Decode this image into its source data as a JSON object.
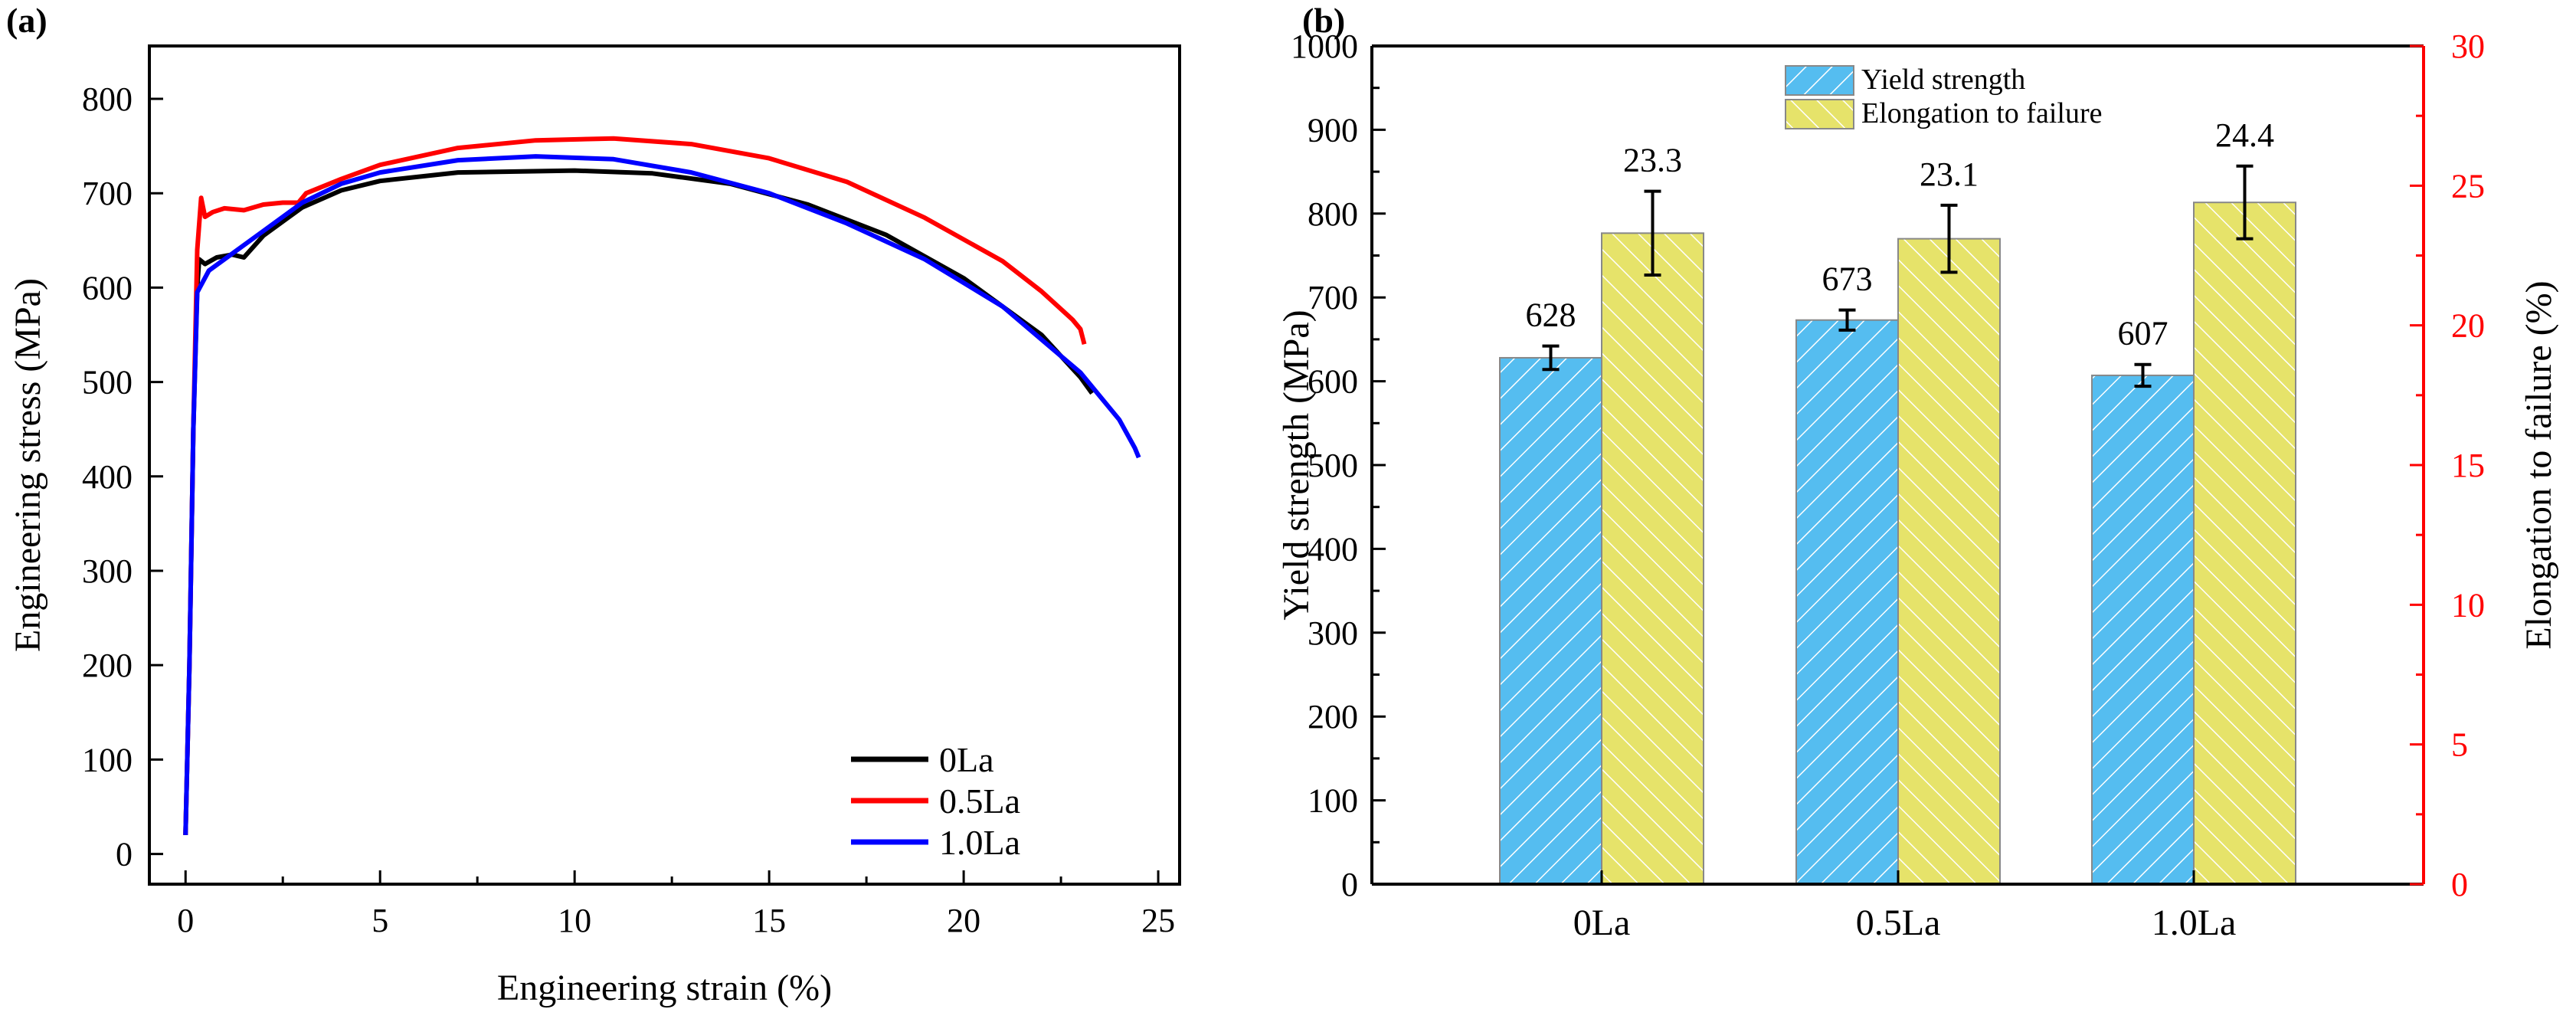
{
  "chart_data": [
    {
      "type": "line",
      "panel_label": "(a)",
      "xlabel": "Engineering strain (%)",
      "ylabel": "Engineering stress (MPa)",
      "xlim": [
        -0.93,
        25.55
      ],
      "ylim": [
        -32,
        856
      ],
      "xticks": [
        0,
        5,
        10,
        15,
        20,
        25
      ],
      "yticks": [
        0,
        100,
        200,
        300,
        400,
        500,
        600,
        700,
        800
      ],
      "grid": false,
      "legend_position": "bottom-right",
      "series": [
        {
          "name": "0La",
          "color": "#000000",
          "x": [
            0,
            0.1,
            0.2,
            0.3,
            0.35,
            0.5,
            0.8,
            1.2,
            1.5,
            2,
            3,
            4,
            5,
            7,
            10,
            12,
            14,
            16,
            18,
            20,
            22,
            23,
            23.3
          ],
          "y": [
            20,
            200,
            450,
            600,
            630,
            625,
            632,
            635,
            632,
            655,
            685,
            703,
            713,
            722,
            724,
            721,
            710,
            688,
            656,
            610,
            550,
            505,
            488
          ]
        },
        {
          "name": "0.5La",
          "color": "#ff0000",
          "x": [
            0,
            0.1,
            0.2,
            0.3,
            0.4,
            0.5,
            0.7,
            1,
            1.5,
            2,
            2.5,
            2.9,
            3.1,
            4,
            5,
            7,
            9,
            11,
            13,
            15,
            17,
            19,
            21,
            22,
            22.8,
            23,
            23.1
          ],
          "y": [
            20,
            200,
            450,
            640,
            695,
            675,
            680,
            684,
            682,
            688,
            690,
            690,
            700,
            715,
            730,
            748,
            756,
            758,
            752,
            737,
            712,
            674,
            628,
            596,
            566,
            556,
            540
          ]
        },
        {
          "name": "1.0La",
          "color": "#0000ff",
          "x": [
            0,
            0.1,
            0.2,
            0.3,
            0.6,
            1,
            2,
            3,
            4,
            5,
            7,
            9,
            11,
            13,
            15,
            17,
            19,
            21,
            23,
            24,
            24.4,
            24.5
          ],
          "y": [
            20,
            200,
            450,
            595,
            618,
            630,
            660,
            690,
            710,
            722,
            735,
            739,
            736,
            722,
            700,
            668,
            630,
            580,
            510,
            460,
            430,
            420
          ]
        }
      ]
    },
    {
      "type": "bar",
      "panel_label": "(b)",
      "categories": [
        "0La",
        "0.5La",
        "1.0La"
      ],
      "ylabel": "Yield strength (MPa)",
      "ylabel_right": "Elongation to failure (%)",
      "ylim": [
        0,
        1000
      ],
      "ylim_right": [
        0,
        30
      ],
      "yticks": [
        0,
        100,
        200,
        300,
        400,
        500,
        600,
        700,
        800,
        900,
        1000
      ],
      "yticks_right": [
        0,
        5,
        10,
        15,
        20,
        25,
        30
      ],
      "right_axis_color": "#ff0000",
      "legend_position": "top-center",
      "series": [
        {
          "name": "Yield strength",
          "axis": "left",
          "color": "#55bdf0",
          "values": [
            628,
            673,
            607
          ],
          "errors": [
            14,
            12,
            13
          ],
          "labels": [
            "628",
            "673",
            "607"
          ]
        },
        {
          "name": "Elongation to failure",
          "axis": "right",
          "color": "#e6e36a",
          "values": [
            23.3,
            23.1,
            24.4
          ],
          "errors": [
            1.5,
            1.2,
            1.3
          ],
          "labels": [
            "23.3",
            "23.1",
            "24.4"
          ]
        }
      ]
    }
  ]
}
